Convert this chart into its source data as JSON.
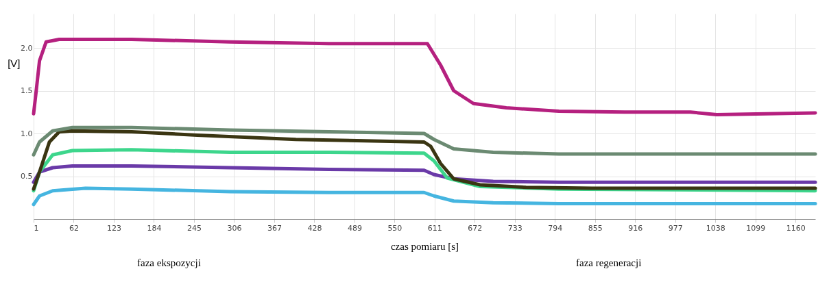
{
  "chart_data": {
    "type": "line",
    "xlabel": "czas pomiaru [s]",
    "ylabel": "[V]",
    "grid": true,
    "line_style": "solid",
    "xlim": [
      1,
      1190
    ],
    "xticks": [
      1,
      62,
      123,
      184,
      245,
      306,
      367,
      428,
      489,
      550,
      611,
      672,
      733,
      794,
      855,
      916,
      977,
      1038,
      1099,
      1160
    ],
    "ylim": [
      0,
      2.4
    ],
    "yticks": [
      0.5,
      {
        "value": 1,
        "label": "1.0"
      },
      1.5,
      {
        "value": 2,
        "label": "2.0"
      }
    ],
    "annotations": [
      "faza ekspozycji",
      "faza regeneracji"
    ],
    "series": [
      {
        "color": "#45b5e0",
        "x": [
          1,
          10,
          30,
          80,
          150,
          300,
          450,
          595,
          610,
          640,
          700,
          800,
          1190
        ],
        "values": [
          0.17,
          0.27,
          0.33,
          0.36,
          0.35,
          0.32,
          0.31,
          0.31,
          0.27,
          0.21,
          0.19,
          0.18,
          0.18
        ]
      },
      {
        "color": "#6a3aa8",
        "x": [
          1,
          10,
          30,
          60,
          150,
          300,
          450,
          595,
          610,
          640,
          700,
          800,
          1190
        ],
        "values": [
          0.43,
          0.55,
          0.6,
          0.62,
          0.62,
          0.6,
          0.58,
          0.57,
          0.52,
          0.47,
          0.44,
          0.43,
          0.43
        ]
      },
      {
        "color": "#3dd68c",
        "x": [
          1,
          10,
          30,
          60,
          150,
          300,
          450,
          595,
          610,
          630,
          680,
          800,
          1190
        ],
        "values": [
          0.33,
          0.55,
          0.75,
          0.8,
          0.81,
          0.78,
          0.78,
          0.77,
          0.68,
          0.48,
          0.38,
          0.35,
          0.33
        ]
      },
      {
        "color": "#3a3512",
        "x": [
          1,
          10,
          25,
          40,
          60,
          150,
          250,
          400,
          595,
          605,
          620,
          640,
          680,
          750,
          850,
          1190
        ],
        "values": [
          0.35,
          0.55,
          0.9,
          1.02,
          1.03,
          1.02,
          0.98,
          0.93,
          0.9,
          0.85,
          0.65,
          0.47,
          0.4,
          0.37,
          0.36,
          0.36
        ]
      },
      {
        "color": "#6b8a72",
        "x": [
          1,
          10,
          30,
          60,
          150,
          300,
          450,
          595,
          610,
          640,
          700,
          800,
          1190
        ],
        "values": [
          0.75,
          0.9,
          1.03,
          1.07,
          1.07,
          1.04,
          1.02,
          1.0,
          0.93,
          0.82,
          0.78,
          0.76,
          0.76
        ]
      },
      {
        "color": "#b5207f",
        "x": [
          1,
          5,
          10,
          20,
          40,
          150,
          300,
          450,
          590,
          600,
          620,
          640,
          670,
          720,
          800,
          900,
          1000,
          1040,
          1190
        ],
        "values": [
          1.23,
          1.5,
          1.85,
          2.07,
          2.1,
          2.1,
          2.07,
          2.05,
          2.05,
          2.05,
          1.8,
          1.5,
          1.35,
          1.3,
          1.26,
          1.25,
          1.25,
          1.22,
          1.24
        ]
      }
    ]
  }
}
